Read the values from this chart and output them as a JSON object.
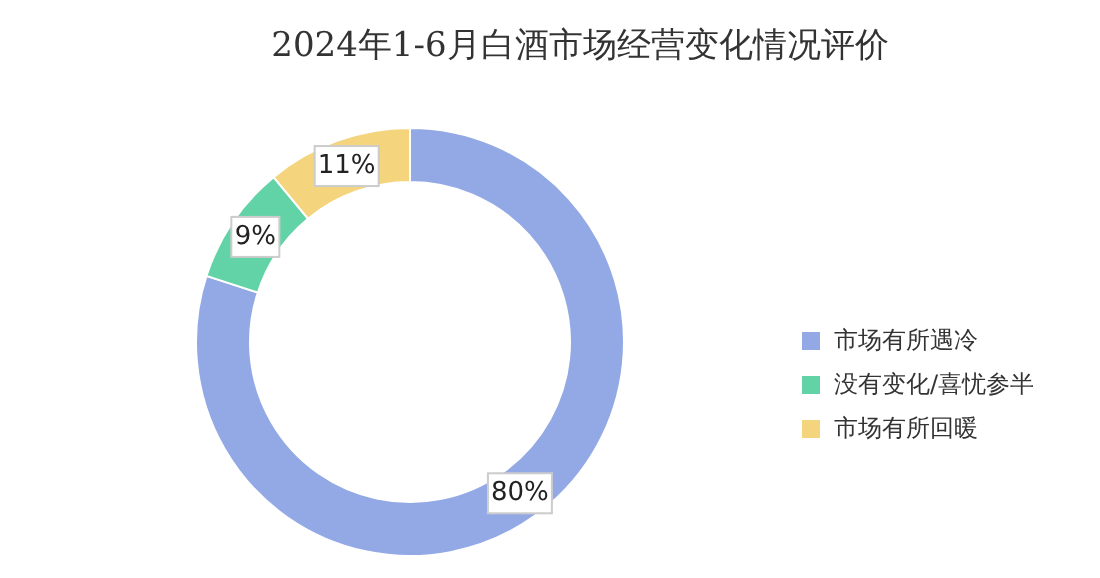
{
  "chart_data": {
    "type": "donut",
    "title": "2024年1-6月白酒市场经营变化情况评价",
    "categories": [
      "市场有所遇冷",
      "没有变化/喜忧参半",
      "市场有所回暖"
    ],
    "values": [
      80,
      9,
      11
    ],
    "colors": [
      "#93a9e6",
      "#62d3a6",
      "#f4d47c"
    ],
    "value_labels": [
      "80%",
      "9%",
      "11%"
    ],
    "legend": "right"
  }
}
